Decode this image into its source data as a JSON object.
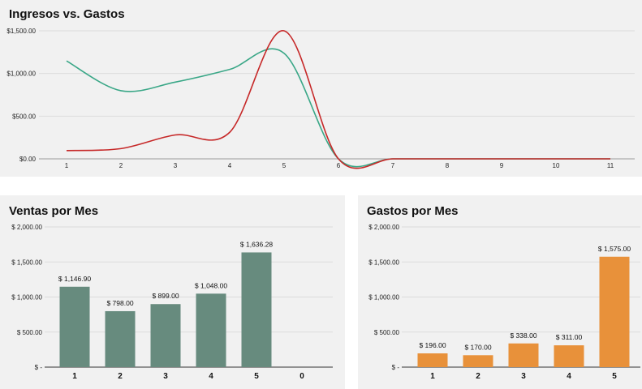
{
  "chart_data": [
    {
      "type": "line",
      "title": "Ingresos vs. Gastos",
      "xlabel": "",
      "ylabel": "",
      "categories": [
        1,
        2,
        3,
        4,
        5,
        6,
        7,
        8,
        9,
        10,
        11
      ],
      "x_tick_labels": [
        "1",
        "2",
        "3",
        "4",
        "5",
        "6",
        "7",
        "8",
        "9",
        "10",
        "11"
      ],
      "y_tick_labels": [
        "$0.00",
        "$500.00",
        "$1,000.00",
        "$1,500.00"
      ],
      "ylim": [
        0,
        1500
      ],
      "smooth": true,
      "grid": true,
      "legend": "none",
      "series": [
        {
          "color": "#3aa787",
          "values": [
            1146.9,
            798,
            899,
            1048,
            1236.28,
            0,
            0,
            0,
            0,
            0,
            0
          ]
        },
        {
          "color": "#c62828",
          "values": [
            97,
            120,
            280,
            311,
            1500,
            0,
            0,
            0,
            0,
            0,
            0
          ]
        }
      ]
    },
    {
      "type": "bar",
      "title": "Ventas por Mes",
      "xlabel": "",
      "ylabel": "",
      "categories": [
        "1",
        "2",
        "3",
        "4",
        "5",
        "0"
      ],
      "values": [
        1146.9,
        798.0,
        899.0,
        1048.0,
        1636.28,
        0
      ],
      "data_labels": [
        "$ 1,146.90",
        "$ 798.00",
        "$ 899.00",
        "$ 1,048.00",
        "$ 1,636.28",
        ""
      ],
      "y_tick_labels": [
        "$ -",
        "$ 500.00",
        "$ 1,000.00",
        "$ 1,500.00",
        "$ 2,000.00"
      ],
      "ylim": [
        0,
        2000
      ],
      "grid": true,
      "legend": "none",
      "color": "#678b7e"
    },
    {
      "type": "bar",
      "title": "Gastos por Mes",
      "xlabel": "",
      "ylabel": "",
      "categories": [
        "1",
        "2",
        "3",
        "4",
        "5"
      ],
      "values": [
        196.0,
        170.0,
        338.0,
        311.0,
        1575.0
      ],
      "data_labels": [
        "$ 196.00",
        "$ 170.00",
        "$ 338.00",
        "$ 311.00",
        "$ 1,575.00"
      ],
      "y_tick_labels": [
        "$ -",
        "$ 500.00",
        "$ 1,000.00",
        "$ 1,500.00",
        "$ 2,000.00"
      ],
      "ylim": [
        0,
        2000
      ],
      "grid": true,
      "legend": "none",
      "color": "#e8913a"
    }
  ]
}
